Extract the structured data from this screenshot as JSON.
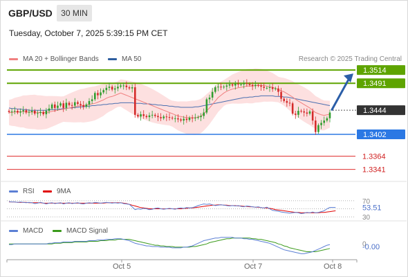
{
  "header": {
    "symbol": "GBP/USD",
    "timeframe": "30 MIN",
    "timestamp": "Tuesday, October 7, 2025 5:39:15 PM CET"
  },
  "legend": {
    "ma20": "MA 20 + Bollinger Bands",
    "ma50": "MA 50",
    "ma20_color": "#f08080",
    "ma50_color": "#2d5d9f"
  },
  "credit": "Research © 2025 Trading Central",
  "rsi_legend": {
    "rsi": "RSI",
    "ma": "9MA",
    "rsi_color": "#5b7fd4",
    "ma_color": "#e00000"
  },
  "macd_legend": {
    "macd": "MACD",
    "signal": "MACD Signal",
    "macd_color": "#5b7fd4",
    "signal_color": "#3a9a1a"
  },
  "chart_data": [
    {
      "type": "candlestick",
      "title": "GBP/USD 30 MIN",
      "x_ticks": [
        "Oct 5",
        "Oct 7",
        "Oct 8"
      ],
      "ylim": [
        1.332,
        1.3525
      ],
      "levels": [
        {
          "label": "1.3514",
          "value": 1.3514,
          "kind": "resistance",
          "color": "#5ea400"
        },
        {
          "label": "1.3491",
          "value": 1.3491,
          "kind": "resistance",
          "color": "#5ea400"
        },
        {
          "label": "1.3444",
          "value": 1.3444,
          "kind": "current",
          "color": "#333333"
        },
        {
          "label": "1.3402",
          "value": 1.3402,
          "kind": "pivot",
          "color": "#2b78e4"
        },
        {
          "label": "1.3364",
          "value": 1.3364,
          "kind": "support",
          "color": "#e03030"
        },
        {
          "label": "1.3341",
          "value": 1.3341,
          "kind": "support",
          "color": "#e03030"
        }
      ],
      "arrow": {
        "direction": "up",
        "from": 1.3445,
        "to": 1.3508,
        "color": "#2b5ea8"
      },
      "close": [
        1.3441,
        1.3442,
        1.3443,
        1.344,
        1.3442,
        1.3444,
        1.344,
        1.3441,
        1.3443,
        1.3438,
        1.3439,
        1.3441,
        1.3437,
        1.3443,
        1.3447,
        1.3454,
        1.3448,
        1.3452,
        1.3456,
        1.3448,
        1.3457,
        1.3453,
        1.3452,
        1.3458,
        1.3455,
        1.3453,
        1.345,
        1.3454,
        1.346,
        1.3463,
        1.3474,
        1.347,
        1.3475,
        1.3479,
        1.3483,
        1.3485,
        1.348,
        1.3482,
        1.3485,
        1.3487,
        1.3487,
        1.3484,
        1.3482,
        1.3484,
        1.3436,
        1.3433,
        1.3437,
        1.3434,
        1.3432,
        1.3435,
        1.3436,
        1.3434,
        1.3432,
        1.343,
        1.3433,
        1.3432,
        1.3431,
        1.343,
        1.343,
        1.3428,
        1.3426,
        1.3429,
        1.3427,
        1.3431,
        1.343,
        1.3431,
        1.3432,
        1.3434,
        1.344,
        1.3463,
        1.3466,
        1.3476,
        1.3484,
        1.3485,
        1.3484,
        1.3485,
        1.3487,
        1.3489,
        1.3487,
        1.349,
        1.3489,
        1.3489,
        1.3491,
        1.349,
        1.3488,
        1.3486,
        1.3488,
        1.3487,
        1.3485,
        1.3483,
        1.3483,
        1.3484,
        1.3481,
        1.3482,
        1.3476,
        1.3464,
        1.346,
        1.3457,
        1.3456,
        1.3438,
        1.3436,
        1.3443,
        1.3442,
        1.344,
        1.3438,
        1.3442,
        1.3426,
        1.3406,
        1.3418,
        1.3422,
        1.3426,
        1.343,
        1.344
      ],
      "ma20": [
        1.344,
        1.344,
        1.3441,
        1.3441,
        1.3441,
        1.3442,
        1.3441,
        1.3441,
        1.3441,
        1.3441,
        1.344,
        1.344,
        1.344,
        1.344,
        1.3441,
        1.3442,
        1.3443,
        1.3444,
        1.3445,
        1.3446,
        1.3447,
        1.3448,
        1.3449,
        1.345,
        1.3451,
        1.3452,
        1.3452,
        1.3453,
        1.3454,
        1.3455,
        1.3456,
        1.3458,
        1.346,
        1.3462,
        1.3465,
        1.3467,
        1.3468,
        1.347,
        1.3472,
        1.3474,
        1.3472,
        1.347,
        1.3468,
        1.3466,
        1.3464,
        1.3462,
        1.346,
        1.3458,
        1.3456,
        1.3454,
        1.3452,
        1.345,
        1.3448,
        1.3446,
        1.3444,
        1.3442,
        1.344,
        1.3438,
        1.3436,
        1.3434,
        1.3433,
        1.3432,
        1.3431,
        1.3431,
        1.3431,
        1.3431,
        1.3432,
        1.3434,
        1.3438,
        1.3443,
        1.3448,
        1.3454,
        1.346,
        1.3466,
        1.347,
        1.3474,
        1.3477,
        1.3479,
        1.3481,
        1.3482,
        1.3483,
        1.3484,
        1.3485,
        1.3486,
        1.3486,
        1.3486,
        1.3487,
        1.3487,
        1.3487,
        1.3487,
        1.3486,
        1.3485,
        1.3484,
        1.3482,
        1.348,
        1.3478,
        1.3476,
        1.3473,
        1.347,
        1.3467,
        1.3463,
        1.346,
        1.3457,
        1.3454,
        1.3451,
        1.3448,
        1.3444,
        1.344,
        1.3438,
        1.3436,
        1.3435,
        1.3436,
        1.3437
      ],
      "ma50": [
        1.3448,
        1.3447,
        1.3447,
        1.3446,
        1.3446,
        1.3445,
        1.3445,
        1.3444,
        1.3444,
        1.3444,
        1.3444,
        1.3444,
        1.3444,
        1.3444,
        1.3445,
        1.3445,
        1.3445,
        1.3446,
        1.3446,
        1.3447,
        1.3447,
        1.3448,
        1.3448,
        1.3449,
        1.3449,
        1.345,
        1.345,
        1.3451,
        1.3451,
        1.3452,
        1.3452,
        1.3453,
        1.3453,
        1.3454,
        1.3454,
        1.3455,
        1.3455,
        1.3456,
        1.3456,
        1.3457,
        1.3457,
        1.3457,
        1.3457,
        1.3457,
        1.3456,
        1.3456,
        1.3456,
        1.3455,
        1.3455,
        1.3455,
        1.3454,
        1.3454,
        1.3453,
        1.3453,
        1.3452,
        1.3452,
        1.3451,
        1.3451,
        1.345,
        1.345,
        1.3449,
        1.3449,
        1.3449,
        1.3449,
        1.3449,
        1.345,
        1.345,
        1.3451,
        1.3452,
        1.3453,
        1.3454,
        1.3455,
        1.3456,
        1.3457,
        1.3458,
        1.3459,
        1.346,
        1.3461,
        1.3462,
        1.3463,
        1.3464,
        1.3465,
        1.3466,
        1.3466,
        1.3467,
        1.3467,
        1.3468,
        1.3468,
        1.3469,
        1.3469,
        1.3469,
        1.3469,
        1.3469,
        1.3468,
        1.3468,
        1.3468,
        1.3467,
        1.3467,
        1.3466,
        1.3465,
        1.3464,
        1.3463,
        1.3462,
        1.3461,
        1.346,
        1.3459,
        1.3458,
        1.3457,
        1.3456,
        1.3455,
        1.3454,
        1.3453,
        1.3452
      ]
    },
    {
      "type": "line",
      "title": "RSI",
      "ylim": [
        25,
        75
      ],
      "y_ticks": [
        "70",
        "30"
      ],
      "current_label": "53.51",
      "rsi": [
        68,
        67,
        67,
        66,
        67,
        66,
        65,
        66,
        65,
        63,
        64,
        66,
        64,
        62,
        64,
        65,
        63,
        64,
        65,
        62,
        64,
        65,
        63,
        64,
        65,
        63,
        62,
        64,
        65,
        64,
        66,
        65,
        64,
        65,
        66,
        65,
        64,
        65,
        64,
        65,
        63,
        62,
        61,
        55,
        48,
        50,
        49,
        51,
        50,
        48,
        49,
        51,
        52,
        50,
        49,
        50,
        51,
        50,
        49,
        51,
        52,
        51,
        53,
        52,
        53,
        55,
        58,
        60,
        62,
        61,
        62,
        60,
        58,
        59,
        60,
        59,
        58,
        57,
        58,
        57,
        58,
        56,
        55,
        57,
        56,
        55,
        54,
        55,
        53,
        52,
        54,
        50,
        46,
        45,
        44,
        42,
        41,
        40,
        39,
        40,
        41,
        40,
        38,
        39,
        41,
        40,
        42,
        40,
        41,
        43,
        45,
        50,
        53.51,
        53.51,
        53.51
      ],
      "ma": [
        67,
        67,
        67,
        66,
        66,
        66,
        66,
        65,
        65,
        65,
        65,
        65,
        64,
        64,
        64,
        64,
        64,
        64,
        64,
        64,
        64,
        64,
        64,
        64,
        64,
        64,
        64,
        64,
        64,
        64,
        64,
        64,
        64,
        64,
        65,
        65,
        65,
        65,
        65,
        65,
        64,
        63,
        61,
        59,
        57,
        55,
        53,
        52,
        51,
        50,
        50,
        50,
        50,
        50,
        50,
        50,
        50,
        50,
        50,
        50,
        50,
        51,
        51,
        52,
        52,
        53,
        54,
        55,
        56,
        57,
        58,
        59,
        59,
        60,
        60,
        59,
        59,
        58,
        58,
        58,
        57,
        57,
        56,
        56,
        55,
        55,
        54,
        54,
        53,
        52,
        52,
        51,
        50,
        48,
        47,
        46,
        45,
        44,
        43,
        42,
        41,
        41,
        40,
        40,
        40,
        40,
        40,
        40,
        40,
        41,
        41,
        42,
        43,
        44,
        45
      ]
    },
    {
      "type": "line",
      "title": "MACD",
      "ylim": [
        -0.0022,
        0.0012
      ],
      "y_ticks": [
        "0"
      ],
      "current_label": "-0.00",
      "macd": [
        -0.0002,
        -0.0002,
        -0.0001,
        -0.0001,
        -0.0001,
        -0.0001,
        -0.0001,
        -0.0001,
        -0.0001,
        -0.0001,
        -0.0001,
        -0.0001,
        -0.0001,
        -0.0001,
        0.0,
        0.0,
        0.0001,
        0.0001,
        0.0001,
        0.0002,
        0.0002,
        0.0002,
        0.0002,
        0.0003,
        0.0003,
        0.0003,
        0.0003,
        0.0003,
        0.0004,
        0.0004,
        0.0004,
        0.0005,
        0.0005,
        0.0005,
        0.0006,
        0.0006,
        0.0006,
        0.0007,
        0.0007,
        0.0007,
        0.0006,
        0.0005,
        0.0004,
        0.0002,
        0.0,
        -0.0001,
        -0.0002,
        -0.0003,
        -0.0004,
        -0.0004,
        -0.0005,
        -0.0005,
        -0.0005,
        -0.0006,
        -0.0006,
        -0.0006,
        -0.0006,
        -0.0007,
        -0.0007,
        -0.0007,
        -0.0007,
        -0.0006,
        -0.0006,
        -0.0005,
        -0.0004,
        -0.0002,
        0.0,
        0.0002,
        0.0004,
        0.0005,
        0.0006,
        0.0007,
        0.0008,
        0.0008,
        0.0009,
        0.0009,
        0.0009,
        0.0009,
        0.0009,
        0.0008,
        0.0008,
        0.0008,
        0.0007,
        0.0007,
        0.0006,
        0.0006,
        0.0005,
        0.0004,
        0.0003,
        0.0002,
        0.0001,
        0.0,
        -0.0002,
        -0.0004,
        -0.0006,
        -0.0008,
        -0.001,
        -0.0011,
        -0.0012,
        -0.0013,
        -0.0014,
        -0.0015,
        -0.0016,
        -0.0016,
        -0.0015,
        -0.0014,
        -0.0013,
        -0.0011,
        -0.0009,
        -0.0007,
        -0.0005,
        -0.0003,
        -0.0002
      ],
      "signal": [
        -0.0001,
        -0.0001,
        -0.0001,
        -0.0001,
        -0.0001,
        -0.0001,
        -0.0001,
        -0.0001,
        -0.0001,
        -0.0001,
        -0.0001,
        -0.0001,
        -0.0001,
        -0.0001,
        -0.0001,
        -0.0001,
        0.0,
        0.0,
        0.0,
        0.0001,
        0.0001,
        0.0001,
        0.0001,
        0.0002,
        0.0002,
        0.0002,
        0.0002,
        0.0002,
        0.0003,
        0.0003,
        0.0003,
        0.0003,
        0.0004,
        0.0004,
        0.0004,
        0.0005,
        0.0005,
        0.0005,
        0.0006,
        0.0006,
        0.0006,
        0.0006,
        0.0006,
        0.0005,
        0.0004,
        0.0003,
        0.0002,
        0.0001,
        0.0,
        -0.0001,
        -0.0002,
        -0.0003,
        -0.0003,
        -0.0004,
        -0.0004,
        -0.0005,
        -0.0005,
        -0.0005,
        -0.0006,
        -0.0006,
        -0.0006,
        -0.0006,
        -0.0006,
        -0.0006,
        -0.0005,
        -0.0005,
        -0.0004,
        -0.0003,
        -0.0002,
        -0.0001,
        0.0001,
        0.0002,
        0.0003,
        0.0004,
        0.0005,
        0.0006,
        0.0007,
        0.0007,
        0.0008,
        0.0008,
        0.0008,
        0.0008,
        0.0008,
        0.0008,
        0.0008,
        0.0007,
        0.0007,
        0.0006,
        0.0006,
        0.0005,
        0.0004,
        0.0003,
        0.0002,
        0.0001,
        -0.0001,
        -0.0002,
        -0.0004,
        -0.0005,
        -0.0007,
        -0.0008,
        -0.0009,
        -0.001,
        -0.0011,
        -0.0012,
        -0.0013,
        -0.0013,
        -0.0013,
        -0.0013,
        -0.0012,
        -0.0011,
        -0.001,
        -0.0009,
        -0.0008
      ]
    }
  ]
}
